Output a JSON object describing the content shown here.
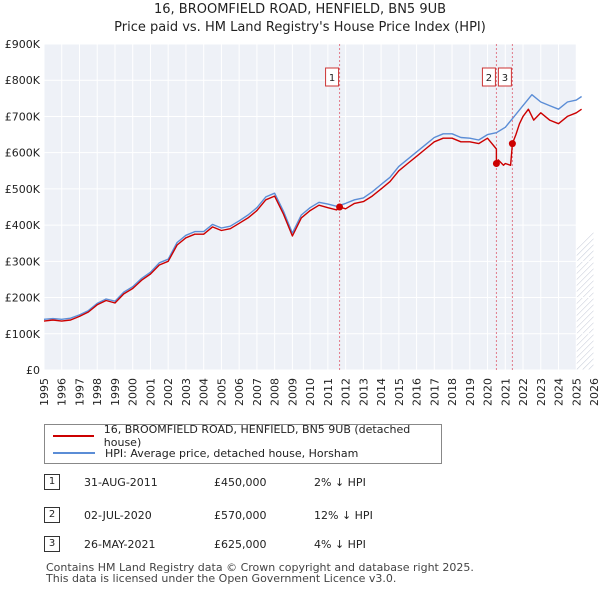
{
  "chart_data": {
    "type": "line",
    "title": "16, BROOMFIELD ROAD, HENFIELD, BN5 9UB",
    "subtitle": "Price paid vs. HM Land Registry's House Price Index (HPI)",
    "xlim": [
      1995,
      2026
    ],
    "ylim": [
      0,
      900000
    ],
    "y_ticks": [
      0,
      100000,
      200000,
      300000,
      400000,
      500000,
      600000,
      700000,
      800000,
      900000
    ],
    "y_tick_labels": [
      "£0",
      "£100K",
      "£200K",
      "£300K",
      "£400K",
      "£500K",
      "£600K",
      "£700K",
      "£800K",
      "£900K"
    ],
    "x_ticks": [
      "1995",
      "1996",
      "1997",
      "1998",
      "1999",
      "2000",
      "2001",
      "2002",
      "2003",
      "2004",
      "2005",
      "2006",
      "2007",
      "2008",
      "2009",
      "2010",
      "2011",
      "2012",
      "2013",
      "2014",
      "2015",
      "2016",
      "2017",
      "2018",
      "2019",
      "2020",
      "2021",
      "2022",
      "2023",
      "2024",
      "2025",
      "2026"
    ],
    "series": [
      {
        "name": "16, BROOMFIELD ROAD, HENFIELD, BN5 9UB (detached house)",
        "color": "#cc0000",
        "x": [
          1995.0,
          1995.5,
          1996.0,
          1996.5,
          1997.0,
          1997.5,
          1998.0,
          1998.5,
          1999.0,
          1999.5,
          2000.0,
          2000.5,
          2001.0,
          2001.5,
          2002.0,
          2002.5,
          2003.0,
          2003.5,
          2004.0,
          2004.5,
          2005.0,
          2005.5,
          2006.0,
          2006.5,
          2007.0,
          2007.5,
          2008.0,
          2008.5,
          2009.0,
          2009.5,
          2010.0,
          2010.5,
          2011.0,
          2011.5,
          2011.66,
          2012.0,
          2012.5,
          2013.0,
          2013.5,
          2014.0,
          2014.5,
          2015.0,
          2015.5,
          2016.0,
          2016.5,
          2017.0,
          2017.5,
          2018.0,
          2018.5,
          2019.0,
          2019.5,
          2020.0,
          2020.5,
          2020.5,
          2020.6,
          2020.9,
          2021.0,
          2021.3,
          2021.4,
          2021.6,
          2021.8,
          2022.0,
          2022.3,
          2022.6,
          2023.0,
          2023.5,
          2024.0,
          2024.5,
          2025.0,
          2025.3
        ],
        "values": [
          135000,
          138000,
          135000,
          138000,
          148000,
          160000,
          180000,
          192000,
          185000,
          210000,
          225000,
          248000,
          265000,
          290000,
          300000,
          345000,
          365000,
          375000,
          375000,
          395000,
          385000,
          390000,
          405000,
          420000,
          440000,
          470000,
          480000,
          430000,
          370000,
          420000,
          440000,
          455000,
          448000,
          442000,
          450000,
          445000,
          460000,
          465000,
          480000,
          500000,
          520000,
          550000,
          570000,
          590000,
          610000,
          630000,
          640000,
          640000,
          630000,
          630000,
          625000,
          640000,
          610000,
          570000,
          580000,
          565000,
          570000,
          565000,
          625000,
          650000,
          680000,
          700000,
          720000,
          690000,
          710000,
          690000,
          680000,
          700000,
          710000,
          720000
        ]
      },
      {
        "name": "HPI: Average price, detached house, Horsham",
        "color": "#5b8dd6",
        "x": [
          1995.0,
          1995.5,
          1996.0,
          1996.5,
          1997.0,
          1997.5,
          1998.0,
          1998.5,
          1999.0,
          1999.5,
          2000.0,
          2000.5,
          2001.0,
          2001.5,
          2002.0,
          2002.5,
          2003.0,
          2003.5,
          2004.0,
          2004.5,
          2005.0,
          2005.5,
          2006.0,
          2006.5,
          2007.0,
          2007.5,
          2008.0,
          2008.5,
          2009.0,
          2009.5,
          2010.0,
          2010.5,
          2011.0,
          2011.5,
          2012.0,
          2012.5,
          2013.0,
          2013.5,
          2014.0,
          2014.5,
          2015.0,
          2015.5,
          2016.0,
          2016.5,
          2017.0,
          2017.5,
          2018.0,
          2018.5,
          2019.0,
          2019.5,
          2020.0,
          2020.5,
          2021.0,
          2021.5,
          2022.0,
          2022.5,
          2023.0,
          2023.5,
          2024.0,
          2024.5,
          2025.0,
          2025.3
        ],
        "values": [
          140000,
          142000,
          140000,
          143000,
          152000,
          164000,
          184000,
          196000,
          190000,
          215000,
          230000,
          253000,
          270000,
          296000,
          306000,
          352000,
          372000,
          382000,
          382000,
          402000,
          392000,
          397000,
          412000,
          428000,
          448000,
          478000,
          488000,
          438000,
          378000,
          428000,
          448000,
          463000,
          458000,
          452000,
          460000,
          470000,
          475000,
          492000,
          512000,
          532000,
          562000,
          582000,
          602000,
          622000,
          642000,
          652000,
          652000,
          642000,
          640000,
          635000,
          650000,
          655000,
          670000,
          700000,
          730000,
          760000,
          740000,
          730000,
          720000,
          740000,
          745000,
          755000
        ]
      }
    ],
    "sales": [
      {
        "id": "1",
        "x": 2011.66,
        "y": 450000
      },
      {
        "id": "2",
        "x": 2020.5,
        "y": 570000
      },
      {
        "id": "3",
        "x": 2021.4,
        "y": 625000
      }
    ]
  },
  "legend": [
    {
      "label": "16, BROOMFIELD ROAD, HENFIELD, BN5 9UB (detached house)",
      "color": "#cc0000"
    },
    {
      "label": "HPI: Average price, detached house, Horsham",
      "color": "#5b8dd6"
    }
  ],
  "transactions": [
    {
      "id": "1",
      "date": "31-AUG-2011",
      "price": "£450,000",
      "hpi": "2% ↓ HPI"
    },
    {
      "id": "2",
      "date": "02-JUL-2020",
      "price": "£570,000",
      "hpi": "12% ↓ HPI"
    },
    {
      "id": "3",
      "date": "26-MAY-2021",
      "price": "£625,000",
      "hpi": "4% ↓ HPI"
    }
  ],
  "footer": {
    "line1": "Contains HM Land Registry data © Crown copyright and database right 2025.",
    "line2": "This data is licensed under the Open Government Licence v3.0."
  }
}
